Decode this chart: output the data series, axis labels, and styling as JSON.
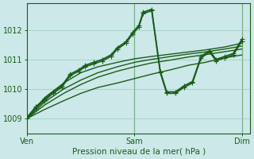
{
  "bg_color": "#cce8e8",
  "grid_color": "#99ccbb",
  "line_color": "#1a5c1a",
  "title": "Pression niveau de la mer( hPa )",
  "xlabel_ticks": [
    "Ven",
    "Sam",
    "Dim"
  ],
  "xlabel_tick_pos": [
    0.0,
    0.5,
    1.0
  ],
  "yticks": [
    1009,
    1010,
    1011,
    1012
  ],
  "ylim": [
    1008.5,
    1012.9
  ],
  "xlim": [
    0.0,
    1.04
  ],
  "series": [
    {
      "x": [
        0.0,
        0.08,
        0.17,
        0.25,
        0.33,
        0.42,
        0.5,
        0.58,
        0.67,
        0.75,
        0.83,
        0.92,
        1.0
      ],
      "y": [
        1009.0,
        1009.3,
        1009.6,
        1009.85,
        1010.05,
        1010.2,
        1010.35,
        1010.5,
        1010.65,
        1010.8,
        1010.9,
        1011.05,
        1011.15
      ],
      "marker": null,
      "lw": 1.0
    },
    {
      "x": [
        0.0,
        0.08,
        0.17,
        0.25,
        0.33,
        0.42,
        0.5,
        0.58,
        0.67,
        0.75,
        0.83,
        0.92,
        1.0
      ],
      "y": [
        1009.0,
        1009.45,
        1009.85,
        1010.15,
        1010.4,
        1010.6,
        1010.75,
        1010.88,
        1010.98,
        1011.08,
        1011.16,
        1011.26,
        1011.35
      ],
      "marker": null,
      "lw": 1.0
    },
    {
      "x": [
        0.0,
        0.08,
        0.17,
        0.25,
        0.33,
        0.42,
        0.5,
        0.58,
        0.67,
        0.75,
        0.83,
        0.92,
        1.0
      ],
      "y": [
        1009.0,
        1009.55,
        1010.0,
        1010.3,
        1010.55,
        1010.75,
        1010.9,
        1011.0,
        1011.1,
        1011.18,
        1011.25,
        1011.35,
        1011.45
      ],
      "marker": null,
      "lw": 1.0
    },
    {
      "x": [
        0.0,
        0.08,
        0.17,
        0.25,
        0.33,
        0.42,
        0.5,
        0.58,
        0.67,
        0.75,
        0.83,
        0.92,
        1.0
      ],
      "y": [
        1009.0,
        1009.7,
        1010.2,
        1010.55,
        1010.75,
        1010.9,
        1011.02,
        1011.1,
        1011.18,
        1011.25,
        1011.32,
        1011.42,
        1011.55
      ],
      "marker": null,
      "lw": 1.0
    },
    {
      "x": [
        0.0,
        0.04,
        0.08,
        0.12,
        0.16,
        0.2,
        0.24,
        0.27,
        0.31,
        0.35,
        0.39,
        0.42,
        0.46,
        0.49,
        0.52,
        0.54,
        0.58,
        0.62,
        0.65,
        0.69,
        0.73,
        0.77,
        0.81,
        0.85,
        0.88,
        0.92,
        0.96,
        1.0
      ],
      "y": [
        1009.0,
        1009.35,
        1009.6,
        1009.85,
        1010.05,
        1010.45,
        1010.6,
        1010.75,
        1010.85,
        1010.95,
        1011.1,
        1011.35,
        1011.55,
        1011.85,
        1012.1,
        1012.55,
        1012.65,
        1010.55,
        1009.85,
        1009.85,
        1010.05,
        1010.2,
        1011.05,
        1011.25,
        1010.95,
        1011.05,
        1011.15,
        1011.62
      ],
      "marker": "+",
      "ms": 4.0,
      "lw": 1.2
    },
    {
      "x": [
        0.0,
        0.04,
        0.08,
        0.12,
        0.16,
        0.2,
        0.24,
        0.27,
        0.31,
        0.35,
        0.39,
        0.42,
        0.46,
        0.49,
        0.52,
        0.54,
        0.58,
        0.62,
        0.65,
        0.69,
        0.73,
        0.77,
        0.81,
        0.85,
        0.88,
        0.92,
        0.96,
        1.0
      ],
      "y": [
        1009.05,
        1009.4,
        1009.65,
        1009.9,
        1010.1,
        1010.5,
        1010.65,
        1010.8,
        1010.9,
        1011.0,
        1011.15,
        1011.4,
        1011.6,
        1011.9,
        1012.15,
        1012.6,
        1012.7,
        1010.6,
        1009.9,
        1009.9,
        1010.1,
        1010.25,
        1011.1,
        1011.3,
        1011.0,
        1011.1,
        1011.2,
        1011.68
      ],
      "marker": "+",
      "ms": 4.0,
      "lw": 1.2
    }
  ],
  "vlines_x": [
    0.5,
    1.0
  ],
  "vline_color": "#2a6a2a",
  "vline_lw": 0.8
}
